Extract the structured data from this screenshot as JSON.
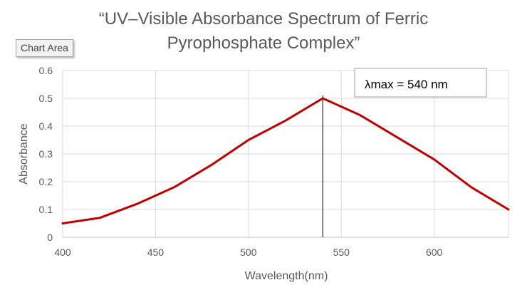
{
  "chart_data": {
    "type": "line",
    "title": "“UV–Visible Absorbance Spectrum of Ferric Pyrophosphate Complex”",
    "title_lines": [
      "“UV–Visible Absorbance Spectrum of Ferric",
      "Pyrophosphate Complex”"
    ],
    "xlabel": "Wavelength(nm)",
    "ylabel": "Absorbance",
    "xlim": [
      400,
      640
    ],
    "ylim": [
      0,
      0.6
    ],
    "x_ticks": [
      400,
      450,
      500,
      550,
      600
    ],
    "x_tick_labels": [
      "400",
      "450",
      "500",
      "550",
      "600"
    ],
    "y_ticks": [
      0,
      0.1,
      0.2,
      0.3,
      0.4,
      0.5,
      0.6
    ],
    "y_tick_labels": [
      "0",
      "0.1",
      "0.2",
      "0.3",
      "0.4",
      "0.5",
      "0.6"
    ],
    "grid": true,
    "legend": false,
    "series": [
      {
        "color": "#c00000",
        "x": [
          400,
          420,
          440,
          460,
          480,
          500,
          520,
          540,
          560,
          580,
          600,
          620,
          640
        ],
        "y": [
          0.05,
          0.07,
          0.12,
          0.18,
          0.26,
          0.35,
          0.42,
          0.5,
          0.44,
          0.36,
          0.28,
          0.18,
          0.1
        ]
      }
    ],
    "vertical_marker": {
      "x": 540,
      "color": "#000000"
    },
    "annotation": {
      "text": "λmax = 540 nm"
    }
  },
  "tooltip": {
    "label": "Chart Area"
  },
  "colors": {
    "series": "#c00000",
    "grid": "#d9d9d9",
    "axis_text": "#595959",
    "title_text": "#595959"
  }
}
